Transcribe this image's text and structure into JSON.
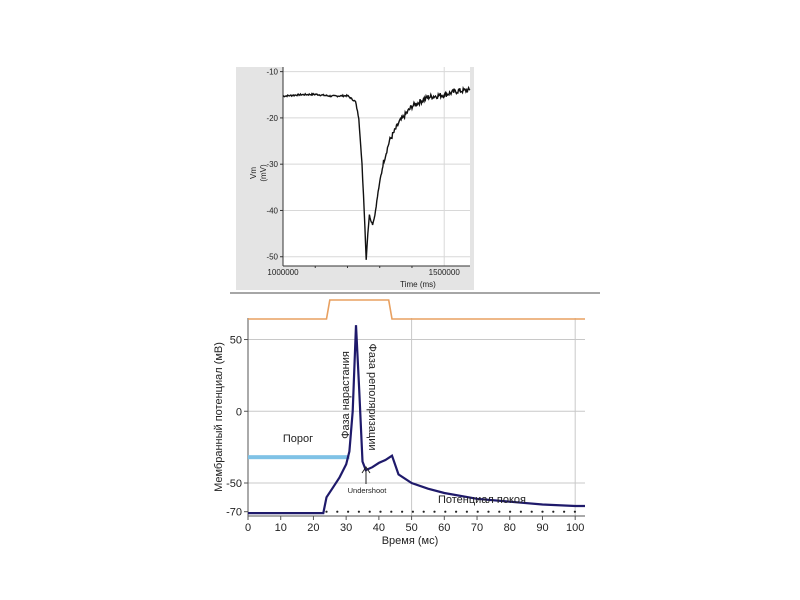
{
  "chart_data": [
    {
      "type": "line",
      "title": "",
      "xlabel": "Time (ms)",
      "ylabel_top": "Vm",
      "ylabel_bottom": "(mV)",
      "xlim": [
        1000000,
        1580000
      ],
      "ylim": [
        -52,
        -9
      ],
      "yticks": [
        "-10",
        "-20",
        "-30",
        "-40",
        "-50"
      ],
      "ytick_values": [
        -10,
        -20,
        -30,
        -40,
        -50
      ],
      "xticks": [
        "1000000",
        "1500000"
      ],
      "xtick_values": [
        1000000,
        1500000
      ],
      "series": [
        {
          "name": "Vm trace",
          "x": [
            1000000,
            1050000,
            1100000,
            1150000,
            1200000,
            1225000,
            1235000,
            1245000,
            1252000,
            1258000,
            1263000,
            1268000,
            1272000,
            1278000,
            1285000,
            1295000,
            1310000,
            1330000,
            1360000,
            1400000,
            1450000,
            1500000,
            1540000,
            1580000
          ],
          "values": [
            -15.3,
            -15.0,
            -14.9,
            -15.3,
            -15.2,
            -16.5,
            -20,
            -30,
            -40,
            -50.5,
            -45,
            -41,
            -42,
            -43,
            -41,
            -36,
            -30,
            -25,
            -21,
            -17.5,
            -15.5,
            -15.0,
            -14.2,
            -14.0
          ]
        }
      ]
    },
    {
      "type": "line",
      "title": "",
      "xlabel": "Время (мс)",
      "ylabel": "Мембранный потенциал (мВ)",
      "xlim": [
        0,
        103
      ],
      "ylim": [
        -73,
        65
      ],
      "yticks": [
        "50",
        "0",
        "-50",
        "-70"
      ],
      "ytick_values": [
        50,
        0,
        -50,
        -70
      ],
      "xticks": [
        "0",
        "10",
        "20",
        "30",
        "40",
        "50",
        "60",
        "70",
        "80",
        "90",
        "100"
      ],
      "xtick_values": [
        0,
        10,
        20,
        30,
        40,
        50,
        60,
        70,
        80,
        90,
        100
      ],
      "series": [
        {
          "name": "Потенциал действия",
          "color": "#1f1a6b",
          "x": [
            0,
            23,
            24,
            26,
            28,
            30,
            31,
            32,
            33,
            34,
            35,
            36,
            38,
            40,
            42,
            44,
            46,
            50,
            55,
            60,
            70,
            80,
            90,
            100,
            103
          ],
          "values": [
            -71,
            -71,
            -60,
            -53,
            -46,
            -37,
            -28,
            0,
            60,
            15,
            -35,
            -41,
            -39,
            -36,
            -34,
            -31,
            -44,
            -50,
            -54,
            -57,
            -61,
            -63,
            -65,
            -66,
            -66
          ]
        },
        {
          "name": "Стимул",
          "color": "#e8a060",
          "x": [
            0,
            24,
            25,
            43,
            44,
            103
          ],
          "values": [
            0,
            0,
            1,
            1,
            0,
            0
          ]
        },
        {
          "name": "Порог",
          "color": "#7fc2e6",
          "x": [
            0,
            31
          ],
          "values": [
            -32,
            -32
          ]
        },
        {
          "name": "Потенциал покоя",
          "x": [
            0,
            103
          ],
          "values": [
            -70,
            -70
          ]
        }
      ],
      "annotations": {
        "rising": "Фаза нарастания",
        "repolarization": "Фаза реполяризации",
        "threshold": "Порог",
        "undershoot": "Undershoot",
        "resting": "Потенциал покоя"
      }
    }
  ]
}
